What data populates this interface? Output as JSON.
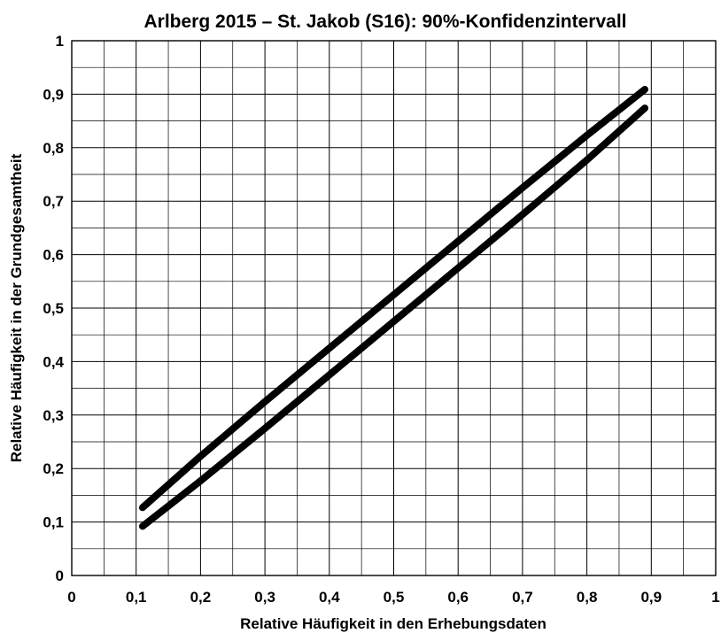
{
  "chart_data": {
    "type": "line",
    "title": "Arlberg 2015 – St. Jakob (S16): 90%-Konfidenzintervall",
    "xlabel": "Relative Häufigkeit in den Erhebungsdaten",
    "ylabel": "Relative Häufigkeit in der Grundgesamtheit",
    "xlim": [
      0,
      1
    ],
    "ylim": [
      0,
      1
    ],
    "x_ticks": [
      "0",
      "0,1",
      "0,2",
      "0,3",
      "0,4",
      "0,5",
      "0,6",
      "0,7",
      "0,8",
      "0,9",
      "1"
    ],
    "y_ticks": [
      "0",
      "0,1",
      "0,2",
      "0,3",
      "0,4",
      "0,5",
      "0,6",
      "0,7",
      "0,8",
      "0,9",
      "1"
    ],
    "grid": true,
    "minor_grid": true,
    "legend": "none",
    "series": [
      {
        "color": "#000000",
        "x": [
          0.11,
          0.2,
          0.3,
          0.4,
          0.5,
          0.6,
          0.7,
          0.8,
          0.89
        ],
        "y": [
          0.127,
          0.223,
          0.325,
          0.425,
          0.525,
          0.625,
          0.725,
          0.823,
          0.909
        ]
      },
      {
        "color": "#000000",
        "x": [
          0.11,
          0.2,
          0.3,
          0.4,
          0.5,
          0.6,
          0.7,
          0.8,
          0.89
        ],
        "y": [
          0.092,
          0.177,
          0.275,
          0.375,
          0.475,
          0.575,
          0.675,
          0.777,
          0.874
        ]
      }
    ]
  }
}
